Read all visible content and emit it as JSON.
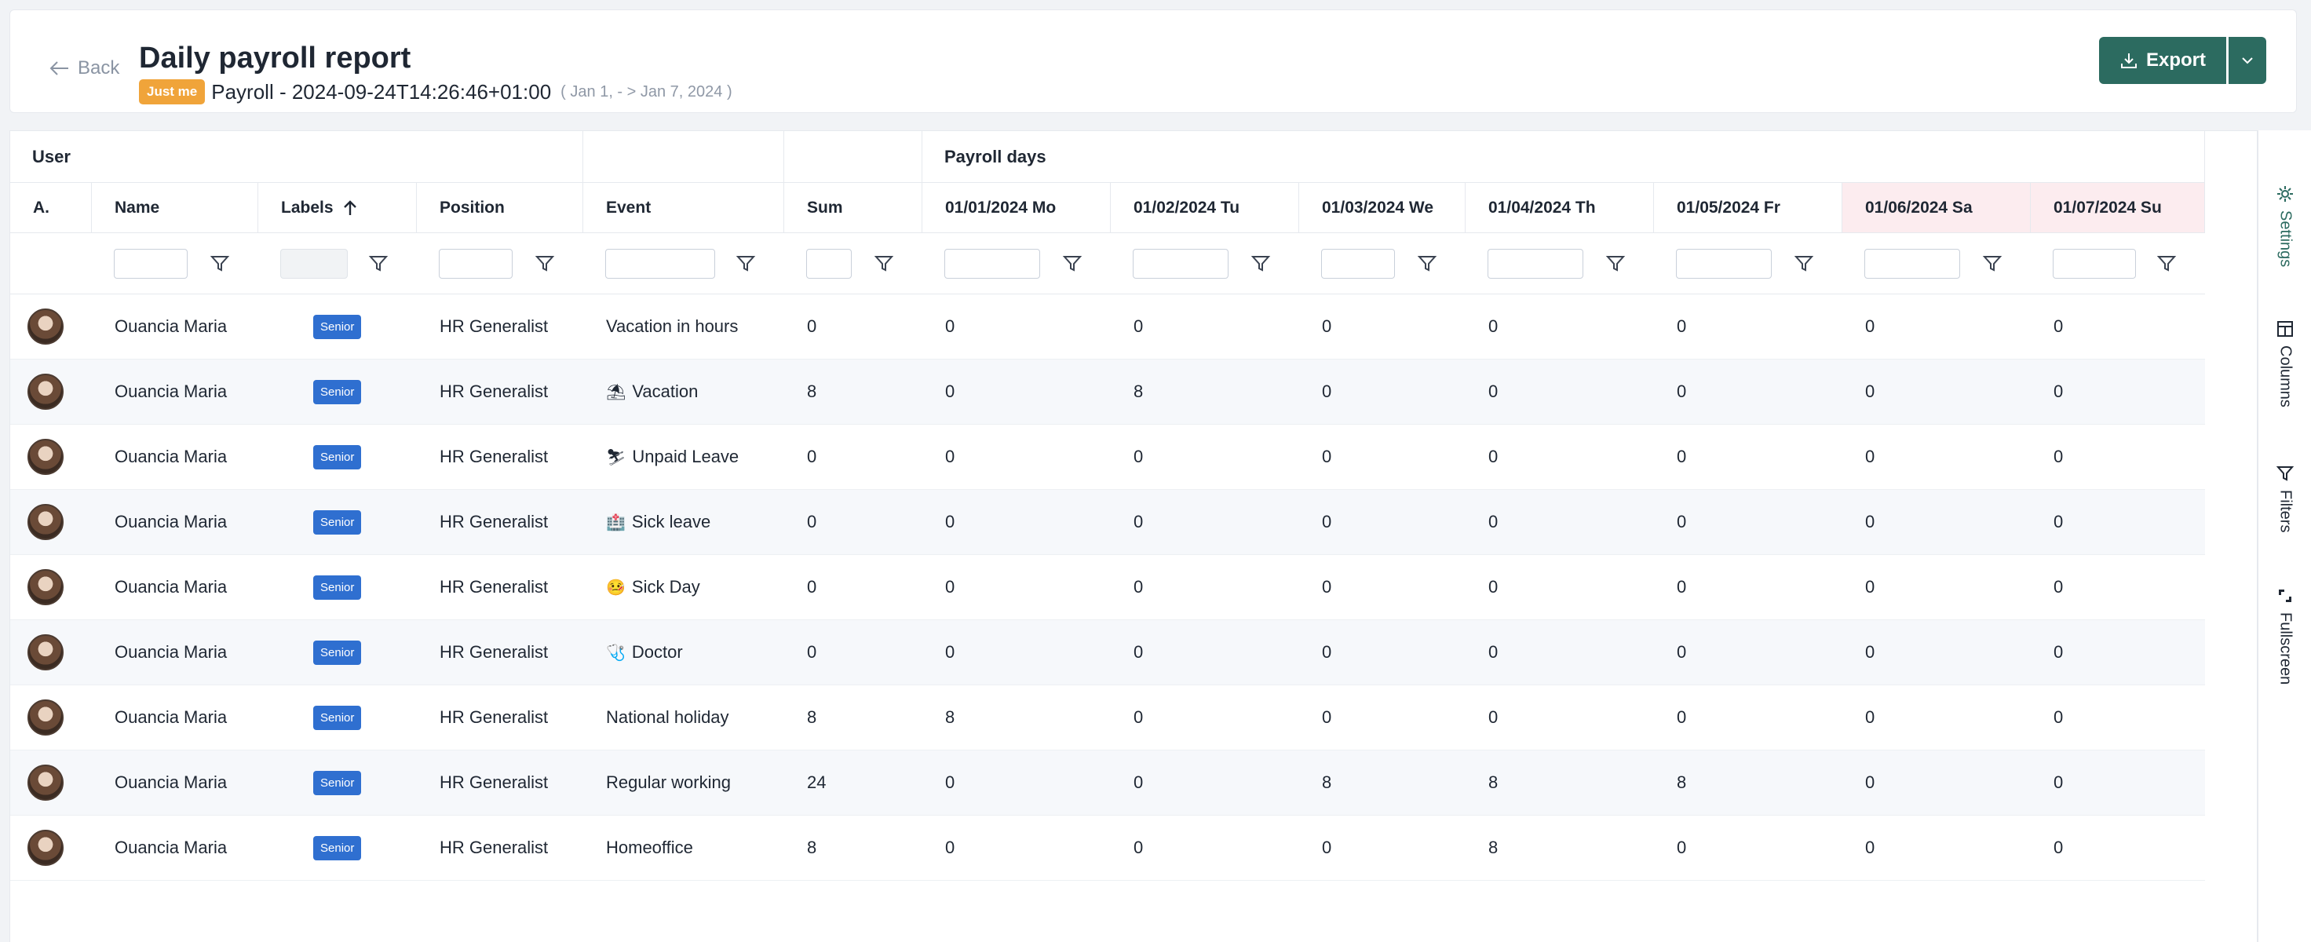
{
  "header": {
    "back_label": "Back",
    "title": "Daily payroll report",
    "badge": "Just me",
    "report_name": "Payroll - 2024-09-24T14:26:46+01:00",
    "date_range": "( Jan 1, - > Jan 7, 2024 )",
    "export_label": "Export"
  },
  "table": {
    "groups": {
      "user": "User",
      "payroll_days": "Payroll days"
    },
    "columns": {
      "avatar": "A.",
      "name": "Name",
      "labels": "Labels",
      "position": "Position",
      "event": "Event",
      "sum": "Sum",
      "d1": "01/01/2024 Mo",
      "d2": "01/02/2024 Tu",
      "d3": "01/03/2024 We",
      "d4": "01/04/2024 Th",
      "d5": "01/05/2024 Fr",
      "d6": "01/06/2024 Sa",
      "d7": "01/07/2024 Su"
    },
    "rows": [
      {
        "name": "Ouancia Maria",
        "label": "Senior",
        "position": "HR Generalist",
        "emoji": "",
        "event": "Vacation in hours",
        "sum": "0",
        "days": [
          "0",
          "0",
          "0",
          "0",
          "0",
          "0",
          "0"
        ]
      },
      {
        "name": "Ouancia Maria",
        "label": "Senior",
        "position": "HR Generalist",
        "emoji": "⛱",
        "event": "Vacation",
        "sum": "8",
        "days": [
          "0",
          "8",
          "0",
          "0",
          "0",
          "0",
          "0"
        ]
      },
      {
        "name": "Ouancia Maria",
        "label": "Senior",
        "position": "HR Generalist",
        "emoji": "⛷",
        "event": "Unpaid Leave",
        "sum": "0",
        "days": [
          "0",
          "0",
          "0",
          "0",
          "0",
          "0",
          "0"
        ]
      },
      {
        "name": "Ouancia Maria",
        "label": "Senior",
        "position": "HR Generalist",
        "emoji": "🏥",
        "event": "Sick leave",
        "sum": "0",
        "days": [
          "0",
          "0",
          "0",
          "0",
          "0",
          "0",
          "0"
        ]
      },
      {
        "name": "Ouancia Maria",
        "label": "Senior",
        "position": "HR Generalist",
        "emoji": "🤒",
        "event": "Sick Day",
        "sum": "0",
        "days": [
          "0",
          "0",
          "0",
          "0",
          "0",
          "0",
          "0"
        ]
      },
      {
        "name": "Ouancia Maria",
        "label": "Senior",
        "position": "HR Generalist",
        "emoji": "🩺",
        "event": "Doctor",
        "sum": "0",
        "days": [
          "0",
          "0",
          "0",
          "0",
          "0",
          "0",
          "0"
        ]
      },
      {
        "name": "Ouancia Maria",
        "label": "Senior",
        "position": "HR Generalist",
        "emoji": "",
        "event": "National holiday",
        "sum": "8",
        "days": [
          "8",
          "0",
          "0",
          "0",
          "0",
          "0",
          "0"
        ]
      },
      {
        "name": "Ouancia Maria",
        "label": "Senior",
        "position": "HR Generalist",
        "emoji": "",
        "event": "Regular working",
        "sum": "24",
        "days": [
          "0",
          "0",
          "8",
          "8",
          "8",
          "0",
          "0"
        ]
      },
      {
        "name": "Ouancia Maria",
        "label": "Senior",
        "position": "HR Generalist",
        "emoji": "",
        "event": "Homeoffice",
        "sum": "8",
        "days": [
          "0",
          "0",
          "0",
          "8",
          "0",
          "0",
          "0"
        ]
      }
    ]
  },
  "side_panel": {
    "settings": "Settings",
    "columns": "Columns",
    "filters": "Filters",
    "fullscreen": "Fullscreen"
  },
  "colors": {
    "accent": "#2c6b60",
    "badge_orange": "#f0a43a",
    "label_blue": "#2f6fd0",
    "weekend_bg": "#fcecef"
  }
}
